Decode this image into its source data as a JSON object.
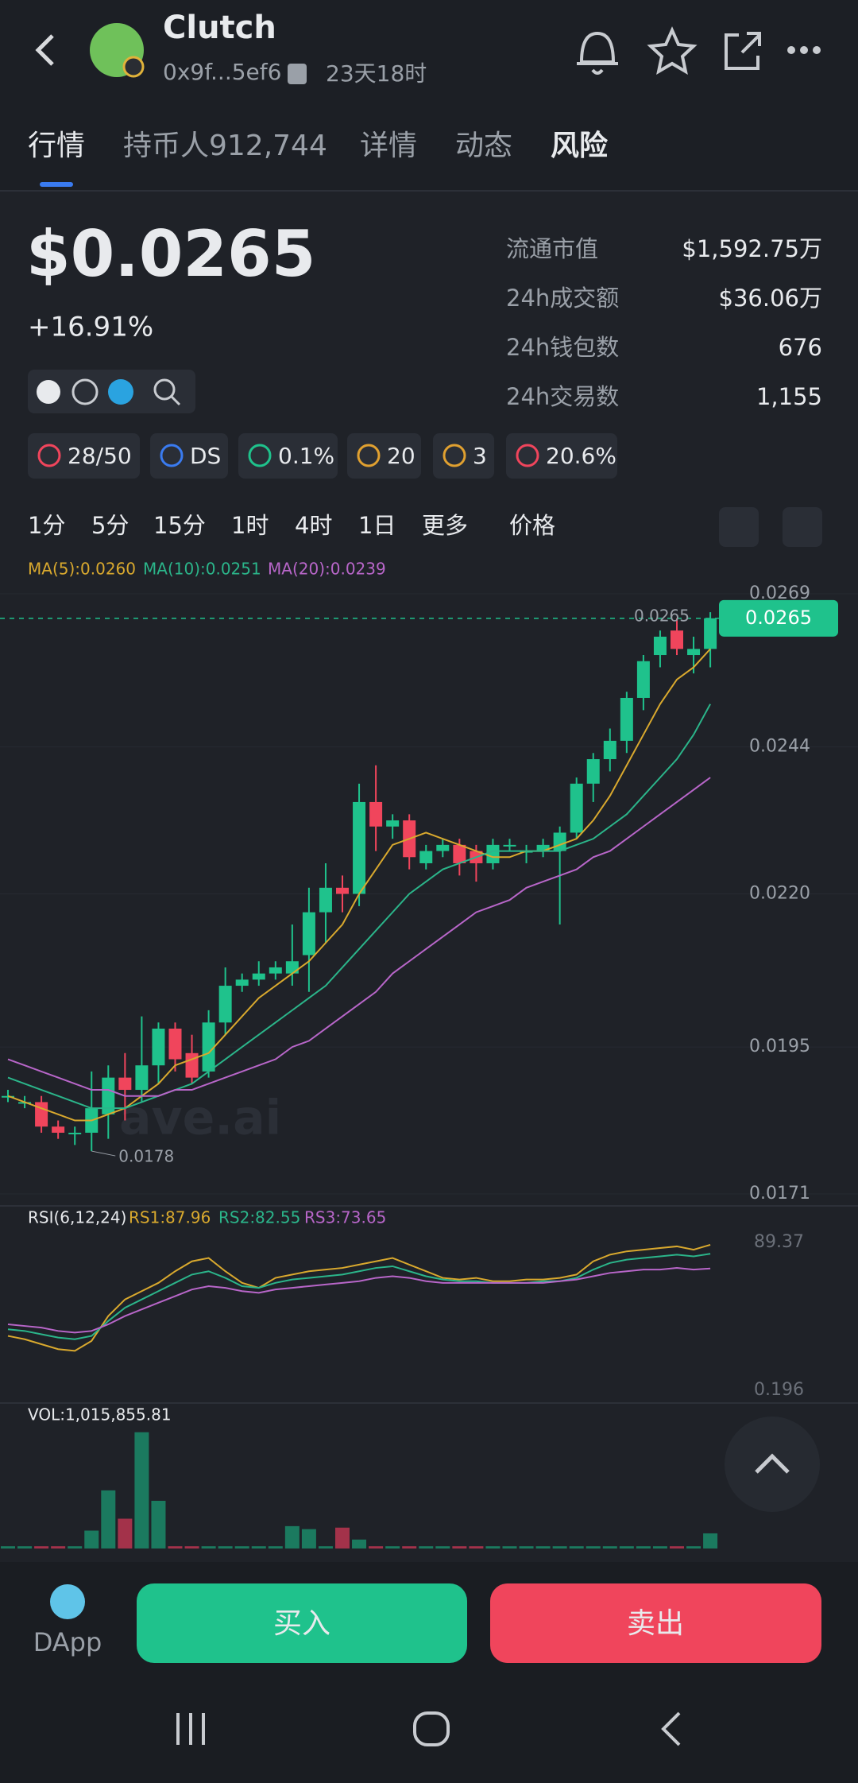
{
  "header": {
    "title": "Clutch",
    "address": "0x9f...5ef6",
    "age": "23天18时"
  },
  "tabs": [
    "行情",
    "持币人912,744",
    "详情",
    "动态",
    "风险"
  ],
  "price": {
    "value": "$0.0265",
    "change": "+16.91%"
  },
  "stats": [
    {
      "label": "流通市值",
      "value": "$1,592.75万"
    },
    {
      "label": "24h成交额",
      "value": "$36.06万"
    },
    {
      "label": "24h钱包数",
      "value": "676"
    },
    {
      "label": "24h交易数",
      "value": "1,155"
    }
  ],
  "badges": [
    "28/50",
    "DS",
    "0.1%",
    "20",
    "3",
    "20.6%"
  ],
  "timeframes": [
    "1分",
    "5分",
    "15分",
    "1时",
    "4时",
    "1日",
    "更多",
    "价格"
  ],
  "chart_data": [
    {
      "type": "candlestick",
      "watermark": "ave.ai",
      "up_color": "#1fc28c",
      "down_color": "#f0455c",
      "open": [
        0.0187,
        0.0186,
        0.0186,
        0.0182,
        0.0181,
        0.0181,
        0.0184,
        0.019,
        0.0188,
        0.0192,
        0.0198,
        0.0194,
        0.0191,
        0.0199,
        0.0205,
        0.0206,
        0.0207,
        0.0207,
        0.021,
        0.0217,
        0.0221,
        0.022,
        0.0235,
        0.0231,
        0.0232,
        0.0225,
        0.0227,
        0.0228,
        0.0227,
        0.0225,
        0.0228,
        0.0227,
        0.0227,
        0.0227,
        0.023,
        0.0238,
        0.0242,
        0.0245,
        0.0252,
        0.0259,
        0.0263,
        0.0259,
        0.026
      ],
      "high": [
        0.0188,
        0.0187,
        0.0187,
        0.0183,
        0.0182,
        0.0191,
        0.0192,
        0.0194,
        0.02,
        0.0199,
        0.0199,
        0.0197,
        0.0201,
        0.0208,
        0.0207,
        0.0209,
        0.0209,
        0.0215,
        0.0221,
        0.0225,
        0.0223,
        0.0238,
        0.0241,
        0.0233,
        0.0233,
        0.0228,
        0.0229,
        0.0229,
        0.0228,
        0.0229,
        0.0229,
        0.0228,
        0.0229,
        0.0231,
        0.0239,
        0.0243,
        0.0247,
        0.0253,
        0.0259,
        0.0263,
        0.0265,
        0.0262,
        0.0266
      ],
      "low": [
        0.0186,
        0.0185,
        0.0181,
        0.018,
        0.0179,
        0.0178,
        0.018,
        0.0183,
        0.0186,
        0.0189,
        0.0191,
        0.0189,
        0.019,
        0.0197,
        0.0204,
        0.0205,
        0.0206,
        0.0205,
        0.0204,
        0.0212,
        0.0217,
        0.0218,
        0.0227,
        0.0229,
        0.0224,
        0.0224,
        0.0226,
        0.0223,
        0.0222,
        0.0224,
        0.0227,
        0.0225,
        0.0226,
        0.0215,
        0.0229,
        0.0235,
        0.024,
        0.0243,
        0.025,
        0.0257,
        0.0259,
        0.0256,
        0.0257
      ],
      "close": [
        0.0187,
        0.0186,
        0.0182,
        0.0181,
        0.0181,
        0.0185,
        0.019,
        0.0188,
        0.0192,
        0.0198,
        0.0193,
        0.019,
        0.0199,
        0.0205,
        0.0206,
        0.0207,
        0.0208,
        0.0209,
        0.0217,
        0.0221,
        0.022,
        0.0235,
        0.0231,
        0.0232,
        0.0226,
        0.0227,
        0.0228,
        0.0225,
        0.0225,
        0.0228,
        0.0228,
        0.0227,
        0.0228,
        0.023,
        0.0238,
        0.0242,
        0.0245,
        0.0252,
        0.0258,
        0.0262,
        0.026,
        0.026,
        0.0265
      ],
      "series": [
        {
          "name": "MA(5):0.0260",
          "color": "#d9a92e",
          "values": [
            0.0187,
            0.0186,
            0.0185,
            0.0184,
            0.0183,
            0.0183,
            0.0184,
            0.0185,
            0.0187,
            0.0189,
            0.0192,
            0.0193,
            0.0194,
            0.0197,
            0.02,
            0.0203,
            0.0205,
            0.0207,
            0.0209,
            0.0212,
            0.0215,
            0.022,
            0.0224,
            0.0228,
            0.0229,
            0.023,
            0.0229,
            0.0228,
            0.0227,
            0.0226,
            0.0226,
            0.0227,
            0.0227,
            0.0228,
            0.0229,
            0.0232,
            0.0236,
            0.0241,
            0.0246,
            0.0251,
            0.0255,
            0.0257,
            0.026
          ]
        },
        {
          "name": "MA(10):0.0251",
          "color": "#2bb58a",
          "values": [
            0.019,
            0.0189,
            0.0188,
            0.0187,
            0.0186,
            0.0185,
            0.0185,
            0.0185,
            0.0186,
            0.0187,
            0.0188,
            0.0189,
            0.0191,
            0.0193,
            0.0195,
            0.0197,
            0.0199,
            0.0201,
            0.0203,
            0.0205,
            0.0208,
            0.0211,
            0.0214,
            0.0217,
            0.022,
            0.0222,
            0.0224,
            0.0225,
            0.0226,
            0.0227,
            0.0227,
            0.0227,
            0.0227,
            0.0227,
            0.0228,
            0.0229,
            0.0231,
            0.0233,
            0.0236,
            0.0239,
            0.0242,
            0.0246,
            0.0251
          ]
        },
        {
          "name": "MA(20):0.0239",
          "color": "#b866c9",
          "values": [
            0.0193,
            0.0192,
            0.0191,
            0.019,
            0.0189,
            0.0188,
            0.0188,
            0.0187,
            0.0187,
            0.0187,
            0.0188,
            0.0188,
            0.0189,
            0.019,
            0.0191,
            0.0192,
            0.0193,
            0.0195,
            0.0196,
            0.0198,
            0.02,
            0.0202,
            0.0204,
            0.0207,
            0.0209,
            0.0211,
            0.0213,
            0.0215,
            0.0217,
            0.0218,
            0.0219,
            0.0221,
            0.0222,
            0.0223,
            0.0224,
            0.0226,
            0.0227,
            0.0229,
            0.0231,
            0.0233,
            0.0235,
            0.0237,
            0.0239
          ]
        }
      ],
      "ylim": [
        0.0171,
        0.0269
      ],
      "yticks": [
        0.0269,
        0.0244,
        {
          "value": 0.022,
          "label": "0.0220"
        },
        0.0195,
        0.0171
      ],
      "current_price": 0.0265,
      "annotations": [
        {
          "value": 0.0178,
          "label": "0.0178"
        }
      ]
    },
    {
      "type": "line",
      "title": "RSI(6,12,24)",
      "series": [
        {
          "name": "RS1:87.96",
          "color": "#d9a92e",
          "values": [
            33,
            31,
            28,
            25,
            24,
            30,
            45,
            55,
            60,
            65,
            72,
            78,
            80,
            72,
            65,
            62,
            68,
            70,
            72,
            73,
            74,
            76,
            78,
            80,
            76,
            72,
            68,
            67,
            68,
            66,
            66,
            67,
            67,
            68,
            70,
            78,
            82,
            84,
            85,
            86,
            87,
            85,
            87.96
          ]
        },
        {
          "name": "RS2:82.55",
          "color": "#2bb58a",
          "values": [
            37,
            36,
            34,
            32,
            31,
            33,
            42,
            50,
            55,
            60,
            65,
            70,
            72,
            68,
            63,
            62,
            65,
            67,
            68,
            69,
            70,
            72,
            74,
            75,
            72,
            69,
            67,
            66,
            66,
            65,
            65,
            65,
            66,
            66,
            68,
            73,
            77,
            79,
            80,
            81,
            82,
            81,
            82.55
          ]
        },
        {
          "name": "RS3:73.65",
          "color": "#b866c9",
          "values": [
            40,
            39,
            38,
            36,
            35,
            36,
            40,
            45,
            49,
            53,
            57,
            61,
            63,
            62,
            60,
            59,
            61,
            62,
            63,
            64,
            65,
            66,
            68,
            69,
            68,
            66,
            65,
            65,
            65,
            65,
            65,
            65,
            65,
            66,
            67,
            69,
            71,
            72,
            73,
            73,
            74,
            73,
            73.65
          ]
        }
      ],
      "ylim": [
        0.196,
        89.37
      ],
      "yticks": [
        89.37,
        0.196
      ]
    },
    {
      "type": "bar",
      "title": "VOL:1,015,855.81",
      "up_color": "#1b7a5f",
      "down_color": "#a3324a",
      "values": [
        150000,
        150000,
        150000,
        150000,
        150000,
        1200000,
        3900000,
        2000000,
        7800000,
        3200000,
        150000,
        150000,
        150000,
        150000,
        150000,
        150000,
        150000,
        1500000,
        1300000,
        150000,
        1400000,
        600000,
        150000,
        150000,
        150000,
        150000,
        150000,
        150000,
        150000,
        150000,
        150000,
        150000,
        150000,
        150000,
        150000,
        150000,
        150000,
        150000,
        150000,
        150000,
        150000,
        150000,
        1015855.81
      ],
      "ylim": [
        0,
        8000000
      ]
    }
  ],
  "buttons": {
    "dapp": "DApp",
    "buy": "买入",
    "sell": "卖出"
  }
}
